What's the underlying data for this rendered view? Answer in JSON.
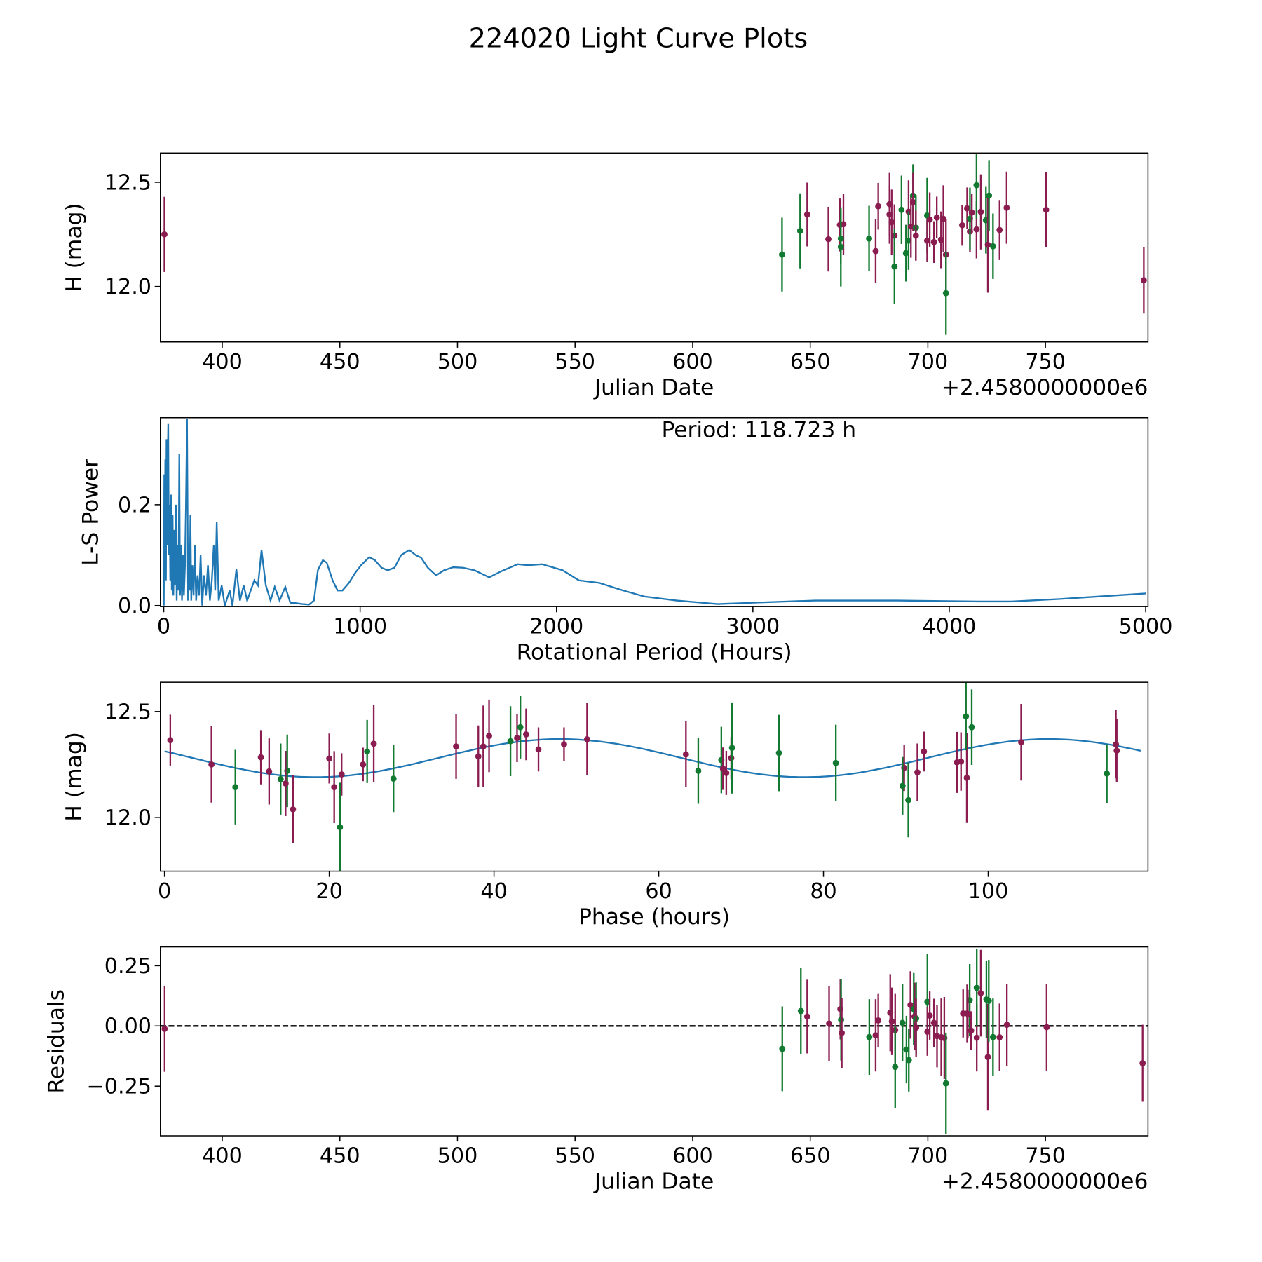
{
  "title": "224020 Light Curve Plots",
  "colors": {
    "p": "#8a1c50",
    "g": "#117a30",
    "line": "#1f77b4",
    "axis": "#000000"
  },
  "chart_data": [
    {
      "type": "scatter",
      "id": "lightcurve",
      "xlabel": "Julian Date",
      "ylabel": "H (mag)",
      "offset_text": "+2.4580000000e6",
      "xlim": [
        373.7,
        793.6
      ],
      "ylim": [
        11.734,
        12.64
      ],
      "xticks": [
        400,
        450,
        500,
        550,
        600,
        650,
        700,
        750
      ],
      "xtick_labels": [
        "400",
        "450",
        "500",
        "550",
        "600",
        "650",
        "700",
        "750"
      ],
      "yticks": [
        12.0,
        12.5
      ],
      "ytick_labels": [
        "12.0",
        "12.5"
      ],
      "points_format": [
        "julian_date_offset",
        "H_mag",
        "error",
        "color_key"
      ],
      "points": [
        [
          375.4,
          12.25,
          0.18,
          "p"
        ],
        [
          638.0,
          12.153,
          0.177,
          "g"
        ],
        [
          645.7,
          12.267,
          0.18,
          "g"
        ],
        [
          648.7,
          12.345,
          0.153,
          "p"
        ],
        [
          657.7,
          12.227,
          0.155,
          "p"
        ],
        [
          662.6,
          12.295,
          0.127,
          "p"
        ],
        [
          664.1,
          12.299,
          0.146,
          "p"
        ],
        [
          663.0,
          12.23,
          0.12,
          "g"
        ],
        [
          663.0,
          12.19,
          0.19,
          "g"
        ],
        [
          675.0,
          12.23,
          0.157,
          "g"
        ],
        [
          677.8,
          12.17,
          0.152,
          "p"
        ],
        [
          678.9,
          12.385,
          0.112,
          "p"
        ],
        [
          683.7,
          12.395,
          0.15,
          "p"
        ],
        [
          683.7,
          12.345,
          0.14,
          "p"
        ],
        [
          684.6,
          12.308,
          0.157,
          "p"
        ],
        [
          685.8,
          12.244,
          0.15,
          "p"
        ],
        [
          685.8,
          12.096,
          0.18,
          "g"
        ],
        [
          688.8,
          12.368,
          0.164,
          "g"
        ],
        [
          690.7,
          12.16,
          0.136,
          "g"
        ],
        [
          691.8,
          12.359,
          0.15,
          "p"
        ],
        [
          691.8,
          12.22,
          0.14,
          "g"
        ],
        [
          692.8,
          12.288,
          0.15,
          "p"
        ],
        [
          693.7,
          12.436,
          0.15,
          "g"
        ],
        [
          693.7,
          12.405,
          0.14,
          "p"
        ],
        [
          694.9,
          12.282,
          0.157,
          "g"
        ],
        [
          694.9,
          12.244,
          0.12,
          "p"
        ],
        [
          699.7,
          12.341,
          0.18,
          "g"
        ],
        [
          699.7,
          12.22,
          0.1,
          "p"
        ],
        [
          700.8,
          12.321,
          0.13,
          "p"
        ],
        [
          702.6,
          12.213,
          0.1,
          "p"
        ],
        [
          703.8,
          12.331,
          0.1,
          "p"
        ],
        [
          705.6,
          12.224,
          0.136,
          "p"
        ],
        [
          706.6,
          12.325,
          0.16,
          "p"
        ],
        [
          707.7,
          12.153,
          0.17,
          "p"
        ],
        [
          707.7,
          11.968,
          0.2,
          "g"
        ],
        [
          714.6,
          12.294,
          0.098,
          "p"
        ],
        [
          716.7,
          12.375,
          0.1,
          "p"
        ],
        [
          717.9,
          12.264,
          0.1,
          "p"
        ],
        [
          717.9,
          12.325,
          0.149,
          "g"
        ],
        [
          718.7,
          12.355,
          0.09,
          "p"
        ],
        [
          720.7,
          12.274,
          0.139,
          "p"
        ],
        [
          720.7,
          12.486,
          0.16,
          "g"
        ],
        [
          722.5,
          12.358,
          0.18,
          "p"
        ],
        [
          724.7,
          12.318,
          0.16,
          "g"
        ],
        [
          725.5,
          12.2,
          0.23,
          "p"
        ],
        [
          726.0,
          12.436,
          0.17,
          "g"
        ],
        [
          727.7,
          12.193,
          0.157,
          "g"
        ],
        [
          730.5,
          12.271,
          0.144,
          "p"
        ],
        [
          733.5,
          12.378,
          0.173,
          "p"
        ],
        [
          750.3,
          12.368,
          0.181,
          "p"
        ],
        [
          791.8,
          12.03,
          0.16,
          "p"
        ]
      ]
    },
    {
      "type": "line",
      "id": "periodogram",
      "xlabel": "Rotational Period (Hours)",
      "ylabel": "L-S Power",
      "annotation": "Period: 118.723 h",
      "xlim": [
        -17,
        5012
      ],
      "ylim": [
        -0.002,
        0.3726
      ],
      "xticks": [
        0,
        1000,
        2000,
        3000,
        4000,
        5000
      ],
      "xtick_labels": [
        "0",
        "1000",
        "2000",
        "3000",
        "4000",
        "5000"
      ],
      "yticks": [
        0.0,
        0.2
      ],
      "ytick_labels": [
        "0.0",
        "0.2"
      ],
      "x": [
        0.5,
        3,
        5,
        8,
        11,
        14,
        17,
        20,
        23,
        26,
        30,
        33,
        37,
        41,
        45,
        49,
        53,
        57,
        62,
        66,
        70,
        75,
        79,
        83,
        88,
        93,
        98,
        103,
        108,
        113,
        118.7,
        124,
        128,
        132,
        136,
        140,
        146,
        152,
        158,
        165,
        172,
        180,
        188,
        196,
        205,
        215,
        225,
        235,
        245,
        255,
        262,
        270,
        280,
        295,
        311,
        336,
        350,
        370,
        388,
        407,
        425,
        461,
        480,
        498,
        520,
        544,
        565,
        590,
        619,
        645,
        670,
        706,
        740,
        765,
        785,
        810,
        830,
        860,
        885,
        910,
        943,
        975,
        1005,
        1047,
        1075,
        1109,
        1140,
        1175,
        1209,
        1250,
        1283,
        1310,
        1345,
        1387,
        1428,
        1474,
        1524,
        1582,
        1657,
        1719,
        1802,
        1856,
        1927,
        2031,
        2114,
        2218,
        2321,
        2446,
        2612,
        2820,
        3027,
        3318,
        3733,
        4149,
        4315,
        4564,
        5000
      ],
      "y": [
        0.0,
        0.26,
        0.1,
        0.29,
        0.05,
        0.33,
        0.12,
        0.26,
        0.36,
        0.1,
        0.2,
        0.05,
        0.22,
        0.03,
        0.18,
        0.02,
        0.15,
        0.04,
        0.2,
        0.01,
        0.12,
        0.03,
        0.3,
        0.02,
        0.12,
        0.01,
        0.1,
        0.02,
        0.08,
        0.2,
        0.37,
        0.01,
        0.09,
        0.03,
        0.18,
        0.01,
        0.08,
        0.02,
        0.12,
        0.01,
        0.06,
        0.02,
        0.1,
        0.0,
        0.06,
        0.02,
        0.08,
        0.01,
        0.05,
        0.12,
        0.03,
        0.165,
        0.01,
        0.04,
        0.0,
        0.03,
        0.0,
        0.072,
        0.01,
        0.04,
        0.01,
        0.05,
        0.04,
        0.11,
        0.04,
        0.01,
        0.037,
        0.01,
        0.037,
        0.005,
        0.005,
        0.003,
        0.002,
        0.01,
        0.07,
        0.09,
        0.085,
        0.05,
        0.03,
        0.03,
        0.045,
        0.065,
        0.08,
        0.096,
        0.09,
        0.075,
        0.07,
        0.075,
        0.1,
        0.11,
        0.1,
        0.095,
        0.075,
        0.06,
        0.07,
        0.076,
        0.075,
        0.07,
        0.056,
        0.068,
        0.082,
        0.08,
        0.082,
        0.07,
        0.05,
        0.045,
        0.032,
        0.018,
        0.01,
        0.003,
        0.006,
        0.01,
        0.01,
        0.008,
        0.008,
        0.013,
        0.024
      ]
    },
    {
      "type": "scatter",
      "id": "phased",
      "xlabel": "Phase (hours)",
      "ylabel": "H (mag)",
      "xlim": [
        -0.5,
        119.4
      ],
      "ylim": [
        11.746,
        12.638
      ],
      "xticks": [
        0,
        20,
        40,
        60,
        80,
        100
      ],
      "xtick_labels": [
        "0",
        "20",
        "40",
        "60",
        "80",
        "100"
      ],
      "yticks": [
        12.0,
        12.5
      ],
      "ytick_labels": [
        "12.0",
        "12.5"
      ],
      "fit_curve": {
        "mean": 12.28,
        "amplitude": 0.09,
        "harmonic_period_h": 59.36,
        "peak_phase_h": 48.0,
        "range": [
          0,
          118.723
        ]
      },
      "points_format": [
        "phase_h",
        "H_mag",
        "error",
        "color_key"
      ],
      "points": [
        [
          0.7,
          12.365,
          0.12,
          "p"
        ],
        [
          5.7,
          12.25,
          0.18,
          "p"
        ],
        [
          8.6,
          12.143,
          0.176,
          "g"
        ],
        [
          11.7,
          12.284,
          0.128,
          "p"
        ],
        [
          12.7,
          12.217,
          0.156,
          "p"
        ],
        [
          14.1,
          12.181,
          0.168,
          "g"
        ],
        [
          14.9,
          12.22,
          0.171,
          "g"
        ],
        [
          14.7,
          12.16,
          0.154,
          "p"
        ],
        [
          15.6,
          12.038,
          0.161,
          "p"
        ],
        [
          20.0,
          12.278,
          0.118,
          "p"
        ],
        [
          20.6,
          12.143,
          0.17,
          "p"
        ],
        [
          21.5,
          12.203,
          0.1,
          "p"
        ],
        [
          21.3,
          11.954,
          0.21,
          "g"
        ],
        [
          24.1,
          12.25,
          0.079,
          "p"
        ],
        [
          24.6,
          12.311,
          0.149,
          "g"
        ],
        [
          25.4,
          12.348,
          0.183,
          "p"
        ],
        [
          27.8,
          12.183,
          0.158,
          "g"
        ],
        [
          35.4,
          12.335,
          0.153,
          "p"
        ],
        [
          38.1,
          12.288,
          0.146,
          "p"
        ],
        [
          38.7,
          12.335,
          0.193,
          "p"
        ],
        [
          39.4,
          12.385,
          0.171,
          "p"
        ],
        [
          42.0,
          12.36,
          0.165,
          "g"
        ],
        [
          42.8,
          12.375,
          0.114,
          "p"
        ],
        [
          43.2,
          12.426,
          0.148,
          "g"
        ],
        [
          43.9,
          12.392,
          0.122,
          "p"
        ],
        [
          45.4,
          12.321,
          0.104,
          "p"
        ],
        [
          48.5,
          12.345,
          0.08,
          "p"
        ],
        [
          51.3,
          12.369,
          0.171,
          "p"
        ],
        [
          63.3,
          12.298,
          0.156,
          "p"
        ],
        [
          64.8,
          12.22,
          0.156,
          "g"
        ],
        [
          67.6,
          12.271,
          0.157,
          "g"
        ],
        [
          67.8,
          12.23,
          0.1,
          "p"
        ],
        [
          68.2,
          12.21,
          0.104,
          "p"
        ],
        [
          68.8,
          12.28,
          0.1,
          "p"
        ],
        [
          68.9,
          12.328,
          0.215,
          "g"
        ],
        [
          74.6,
          12.304,
          0.18,
          "g"
        ],
        [
          81.5,
          12.257,
          0.181,
          "g"
        ],
        [
          89.8,
          12.234,
          0.109,
          "p"
        ],
        [
          89.6,
          12.149,
          0.136,
          "g"
        ],
        [
          90.3,
          12.082,
          0.176,
          "g"
        ],
        [
          91.4,
          12.213,
          0.136,
          "p"
        ],
        [
          92.2,
          12.311,
          0.094,
          "p"
        ],
        [
          96.2,
          12.26,
          0.144,
          "p"
        ],
        [
          96.7,
          12.264,
          0.138,
          "p"
        ],
        [
          97.4,
          12.187,
          0.213,
          "p"
        ],
        [
          97.3,
          12.477,
          0.16,
          "g"
        ],
        [
          98.0,
          12.426,
          0.178,
          "g"
        ],
        [
          104.0,
          12.355,
          0.181,
          "p"
        ],
        [
          114.4,
          12.207,
          0.138,
          "g"
        ],
        [
          115.5,
          12.345,
          0.161,
          "p"
        ],
        [
          115.6,
          12.315,
          0.15,
          "p"
        ]
      ]
    },
    {
      "type": "scatter",
      "id": "residuals",
      "xlabel": "Julian Date",
      "ylabel": "Residuals",
      "offset_text": "+2.4580000000e6",
      "xlim": [
        373.7,
        793.6
      ],
      "ylim": [
        -0.456,
        0.328
      ],
      "zero_line": 0,
      "xticks": [
        400,
        450,
        500,
        550,
        600,
        650,
        700,
        750
      ],
      "xtick_labels": [
        "400",
        "450",
        "500",
        "550",
        "600",
        "650",
        "700",
        "750"
      ],
      "yticks": [
        -0.25,
        0.0,
        0.25
      ],
      "ytick_labels": [
        "−0.25",
        "0.00",
        "0.25"
      ],
      "points_format": [
        "julian_date_offset",
        "residual",
        "error",
        "color_key"
      ],
      "points": [
        [
          375.5,
          -0.012,
          0.178,
          "p"
        ],
        [
          638.1,
          -0.095,
          0.176,
          "g"
        ],
        [
          646.0,
          0.062,
          0.18,
          "g"
        ],
        [
          648.7,
          0.039,
          0.153,
          "p"
        ],
        [
          658.0,
          0.01,
          0.155,
          "p"
        ],
        [
          662.8,
          0.07,
          0.126,
          "p"
        ],
        [
          663.1,
          0.026,
          0.17,
          "g"
        ],
        [
          663.4,
          -0.029,
          0.146,
          "p"
        ],
        [
          675.1,
          -0.046,
          0.157,
          "g"
        ],
        [
          677.8,
          -0.039,
          0.15,
          "p"
        ],
        [
          678.9,
          0.023,
          0.11,
          "p"
        ],
        [
          684.0,
          0.055,
          0.16,
          "p"
        ],
        [
          684.7,
          0.019,
          0.14,
          "p"
        ],
        [
          686.1,
          -0.017,
          0.15,
          "p"
        ],
        [
          686.1,
          -0.17,
          0.17,
          "g"
        ],
        [
          689.2,
          0.013,
          0.16,
          "g"
        ],
        [
          690.9,
          -0.098,
          0.14,
          "g"
        ],
        [
          691.9,
          -0.142,
          0.13,
          "g"
        ],
        [
          692.6,
          0.087,
          0.14,
          "p"
        ],
        [
          694.0,
          0.07,
          0.15,
          "g"
        ],
        [
          694.3,
          0.039,
          0.14,
          "p"
        ],
        [
          695.0,
          0.031,
          0.15,
          "g"
        ],
        [
          695.0,
          -0.007,
          0.12,
          "p"
        ],
        [
          699.8,
          0.1,
          0.2,
          "g"
        ],
        [
          699.8,
          -0.024,
          0.1,
          "p"
        ],
        [
          700.8,
          0.043,
          0.1,
          "p"
        ],
        [
          702.6,
          0.013,
          0.1,
          "p"
        ],
        [
          703.9,
          -0.042,
          0.13,
          "p"
        ],
        [
          705.7,
          -0.046,
          0.16,
          "p"
        ],
        [
          707.0,
          -0.05,
          0.17,
          "p"
        ],
        [
          707.7,
          -0.238,
          0.21,
          "g"
        ],
        [
          715.0,
          0.052,
          0.1,
          "p"
        ],
        [
          716.7,
          0.052,
          0.12,
          "p"
        ],
        [
          717.8,
          0.107,
          0.15,
          "g"
        ],
        [
          717.0,
          0.05,
          0.1,
          "p"
        ],
        [
          718.4,
          -0.019,
          0.08,
          "p"
        ],
        [
          720.8,
          -0.049,
          0.14,
          "p"
        ],
        [
          720.8,
          0.158,
          0.16,
          "g"
        ],
        [
          722.5,
          0.136,
          0.18,
          "p"
        ],
        [
          724.9,
          0.11,
          0.16,
          "g"
        ],
        [
          725.5,
          -0.129,
          0.22,
          "p"
        ],
        [
          725.9,
          0.104,
          0.17,
          "g"
        ],
        [
          727.7,
          -0.046,
          0.16,
          "g"
        ],
        [
          730.5,
          -0.047,
          0.14,
          "p"
        ],
        [
          733.6,
          0.005,
          0.17,
          "p"
        ],
        [
          750.5,
          -0.005,
          0.18,
          "p"
        ],
        [
          791.3,
          -0.155,
          0.16,
          "p"
        ]
      ]
    }
  ]
}
